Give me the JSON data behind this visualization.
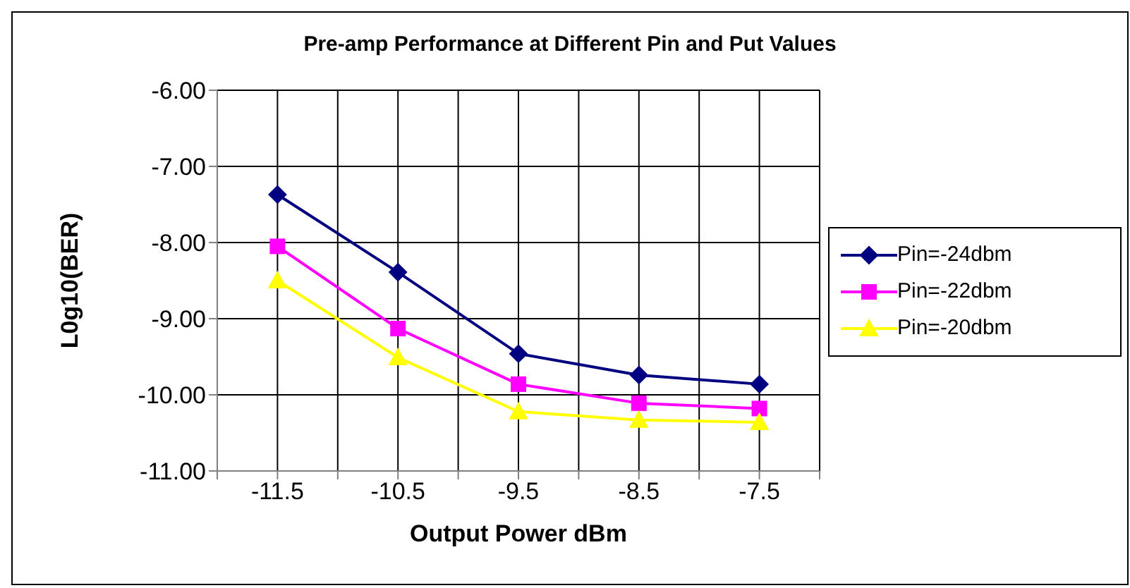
{
  "chart_data": {
    "type": "line",
    "title": "Pre-amp Performance at Different Pin and Put Values",
    "xlabel": "Output Power dBm",
    "ylabel": "L0g10(BER)",
    "x": [
      -11.5,
      -10.5,
      -9.5,
      -8.5,
      -7.5
    ],
    "xlim": [
      -12,
      -7
    ],
    "xticks": [
      {
        "value": -12,
        "label": null
      },
      -11.5,
      {
        "value": -11,
        "label": null
      },
      -10.5,
      {
        "value": -10,
        "label": null
      },
      -9.5,
      {
        "value": -9,
        "label": null
      },
      -8.5,
      {
        "value": -8,
        "label": null
      },
      -7.5,
      {
        "value": -7,
        "label": null
      }
    ],
    "ylim": [
      -11,
      -6
    ],
    "yticks": [
      {
        "value": -11,
        "label": "-11.00"
      },
      {
        "value": -10,
        "label": "-10.00"
      },
      {
        "value": -9,
        "label": "-9.00"
      },
      {
        "value": -8,
        "label": "-8.00"
      },
      {
        "value": -7,
        "label": "-7.00"
      },
      {
        "value": -6,
        "label": "-6.00"
      }
    ],
    "grid": true,
    "legend": "right",
    "line_style": "solid",
    "series": [
      {
        "name": "Pin=-24dbm",
        "color": "#000080",
        "marker": "diamond",
        "values": [
          -7.37,
          -8.39,
          -9.46,
          -9.74,
          -9.86
        ]
      },
      {
        "name": "Pin=-22dbm",
        "color": "#ff00ff",
        "marker": "square",
        "values": [
          -8.05,
          -9.13,
          -9.86,
          -10.11,
          -10.18
        ]
      },
      {
        "name": "Pin=-20dbm",
        "color": "#ffff00",
        "marker": "triangle",
        "values": [
          -8.5,
          -9.51,
          -10.22,
          -10.33,
          -10.36
        ]
      }
    ]
  }
}
